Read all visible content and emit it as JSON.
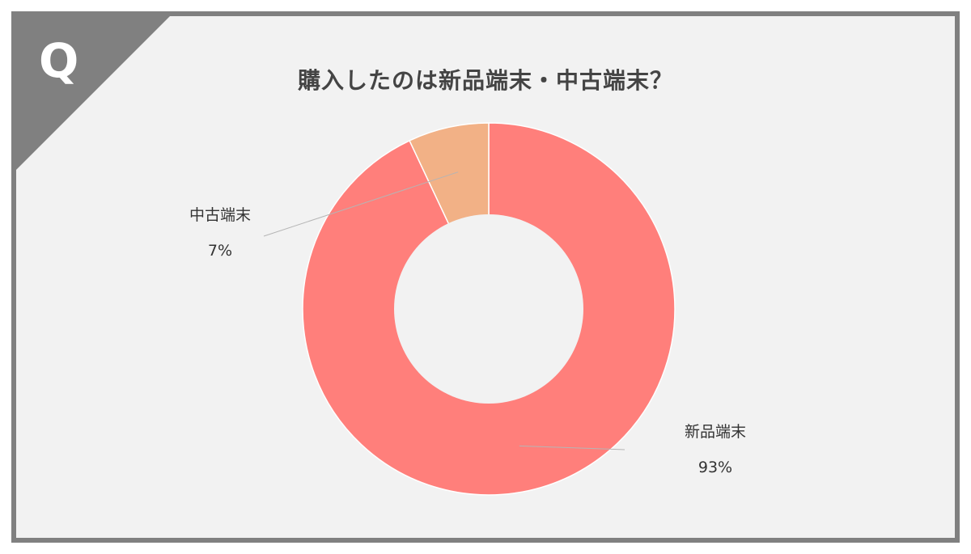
{
  "badge": {
    "letter": "Q"
  },
  "chart_data": {
    "type": "pie",
    "donut": true,
    "title": "購入したのは新品端末・中古端末？",
    "slices": [
      {
        "label": "新品端末",
        "value": 93,
        "value_label": "93%",
        "color": "#ff7f7b"
      },
      {
        "label": "中古端末",
        "value": 7,
        "value_label": "7%",
        "color": "#f2b186"
      }
    ],
    "legend": "none",
    "labels": "outside-with-leader-lines"
  },
  "colors": {
    "frame": "#808080",
    "background": "#f2f2f2",
    "title_text": "#444444"
  }
}
